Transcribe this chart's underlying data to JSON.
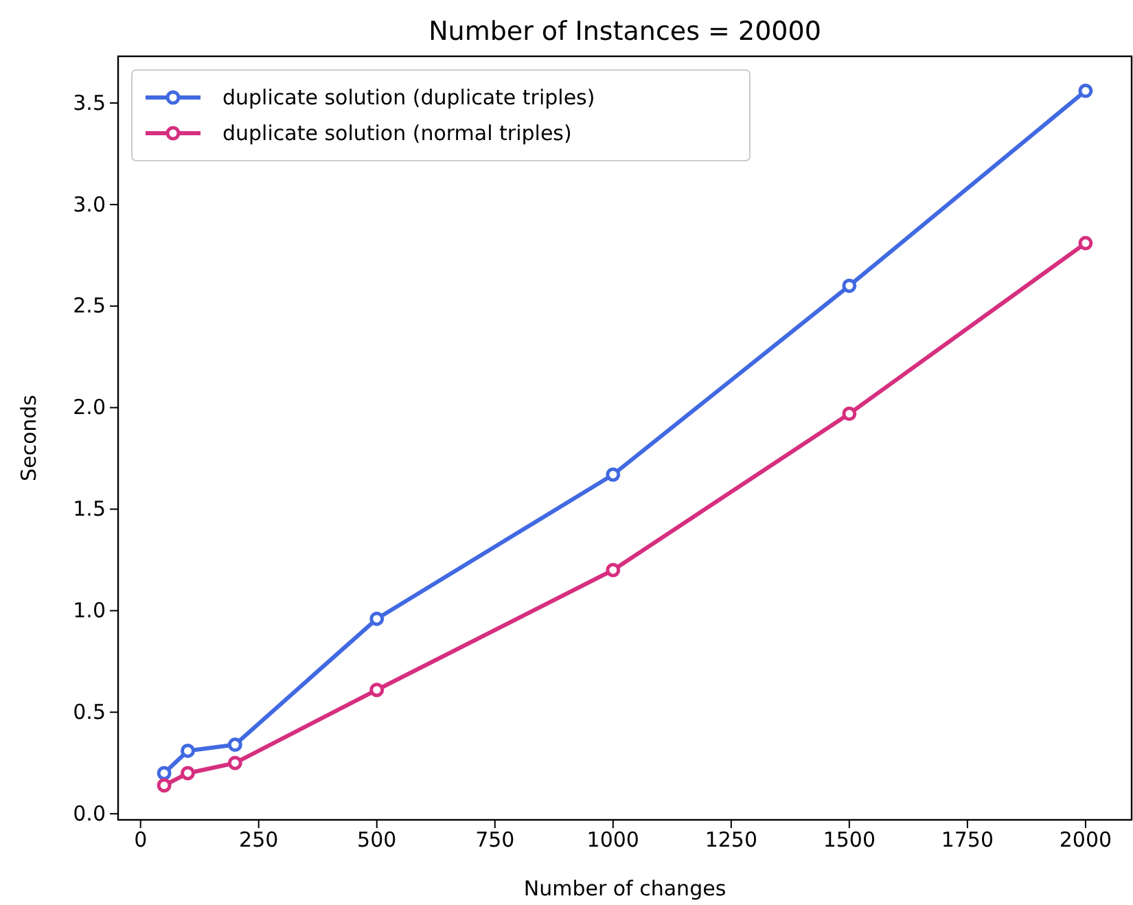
{
  "chart_data": {
    "type": "line",
    "title": "Number of Instances = 20000",
    "xlabel": "Number of changes",
    "ylabel": "Seconds",
    "x": [
      50,
      100,
      200,
      500,
      1000,
      1500,
      2000
    ],
    "series": [
      {
        "name": "duplicate solution (duplicate triples)",
        "color": "#4169e1",
        "values": [
          0.2,
          0.31,
          0.34,
          0.96,
          1.67,
          2.6,
          3.56
        ]
      },
      {
        "name": "duplicate solution (normal triples)",
        "color": "#d62f7f",
        "values": [
          0.14,
          0.2,
          0.25,
          0.61,
          1.2,
          1.97,
          2.81
        ]
      }
    ],
    "xlim": [
      -47.5,
      2097.5
    ],
    "xticks": [
      0,
      250,
      500,
      750,
      1000,
      1250,
      1500,
      1750,
      2000
    ],
    "ylim": [
      -0.03,
      3.73
    ],
    "yticks": [
      {
        "value": 0,
        "label": "0.0"
      },
      0.5,
      {
        "value": 1,
        "label": "1.0"
      },
      1.5,
      {
        "value": 2,
        "label": "2.0"
      },
      2.5,
      {
        "value": 3,
        "label": "3.0"
      },
      3.5
    ],
    "legend": "top left",
    "marker": "circle",
    "line_style": "solid",
    "grid": false
  }
}
